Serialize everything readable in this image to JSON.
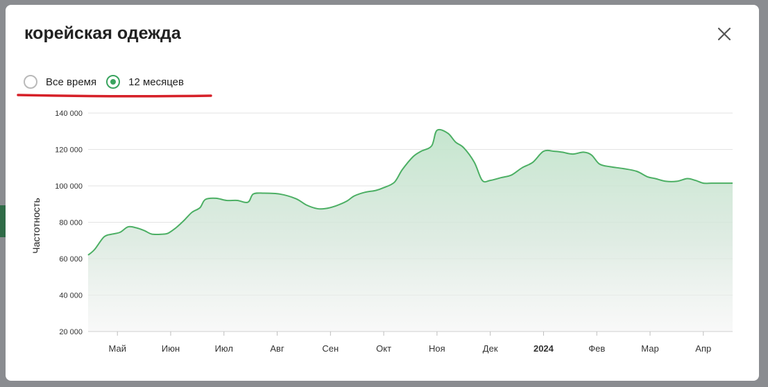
{
  "modal": {
    "title": "корейская одежда",
    "close_icon": "close-x-icon"
  },
  "period_options": [
    {
      "label": "Все время",
      "checked": false
    },
    {
      "label": "12 месяцев",
      "checked": true
    }
  ],
  "colors": {
    "accent": "#3aa45f",
    "line": "#4caf64",
    "annotation_mark": "#d62028"
  },
  "chart_data": {
    "type": "area",
    "ylabel": "Частотность",
    "ylim": [
      20000,
      140000
    ],
    "yticks": [
      20000,
      40000,
      60000,
      80000,
      100000,
      120000,
      140000
    ],
    "ytick_labels": [
      "20 000",
      "40 000",
      "60 000",
      "80 000",
      "100 000",
      "120 000",
      "140 000"
    ],
    "grid": true,
    "xlim": [
      0,
      12.1
    ],
    "xticks": [
      {
        "pos": 0.55,
        "label": "Май",
        "bold": false
      },
      {
        "pos": 1.55,
        "label": "Июн",
        "bold": false
      },
      {
        "pos": 2.55,
        "label": "Июл",
        "bold": false
      },
      {
        "pos": 3.55,
        "label": "Авг",
        "bold": false
      },
      {
        "pos": 4.55,
        "label": "Сен",
        "bold": false
      },
      {
        "pos": 5.55,
        "label": "Окт",
        "bold": false
      },
      {
        "pos": 6.55,
        "label": "Ноя",
        "bold": false
      },
      {
        "pos": 7.55,
        "label": "Дек",
        "bold": false
      },
      {
        "pos": 8.55,
        "label": "2024",
        "bold": true
      },
      {
        "pos": 9.55,
        "label": "Фев",
        "bold": false
      },
      {
        "pos": 10.55,
        "label": "Мар",
        "bold": false
      },
      {
        "pos": 11.55,
        "label": "Апр",
        "bold": false
      }
    ],
    "series": [
      {
        "x": [
          0,
          0.12,
          0.3,
          0.45,
          0.6,
          0.75,
          0.9,
          1.05,
          1.2,
          1.4,
          1.5,
          1.65,
          1.8,
          1.95,
          2.1,
          2.2,
          2.4,
          2.6,
          2.8,
          3.0,
          3.1,
          3.3,
          3.6,
          3.9,
          4.1,
          4.3,
          4.45,
          4.65,
          4.85,
          5.0,
          5.2,
          5.4,
          5.55,
          5.75,
          5.9,
          6.1,
          6.25,
          6.45,
          6.55,
          6.75,
          6.9,
          7.05,
          7.25,
          7.4,
          7.55,
          7.75,
          7.95,
          8.15,
          8.35,
          8.55,
          8.75,
          8.9,
          9.1,
          9.3,
          9.45,
          9.6,
          9.8,
          10.05,
          10.3,
          10.5,
          10.65,
          10.85,
          11.05,
          11.25,
          11.4,
          11.55,
          11.7,
          11.85,
          12.1
        ],
        "y": [
          62000,
          65000,
          72000,
          73500,
          74500,
          77500,
          77000,
          75500,
          73500,
          73500,
          74000,
          77000,
          81000,
          85500,
          88000,
          92500,
          93200,
          92000,
          92000,
          91000,
          95500,
          96000,
          95500,
          93000,
          89500,
          87500,
          87500,
          89000,
          91500,
          94500,
          96500,
          97500,
          99000,
          102000,
          109000,
          116000,
          119000,
          122000,
          130500,
          129000,
          124000,
          121000,
          113000,
          103000,
          103000,
          104500,
          106000,
          110000,
          113000,
          119000,
          119000,
          118500,
          117500,
          118500,
          117000,
          112000,
          110500,
          109500,
          108000,
          105000,
          104000,
          102500,
          102500,
          104000,
          103000,
          101500,
          101500,
          101500,
          101500
        ]
      }
    ]
  }
}
